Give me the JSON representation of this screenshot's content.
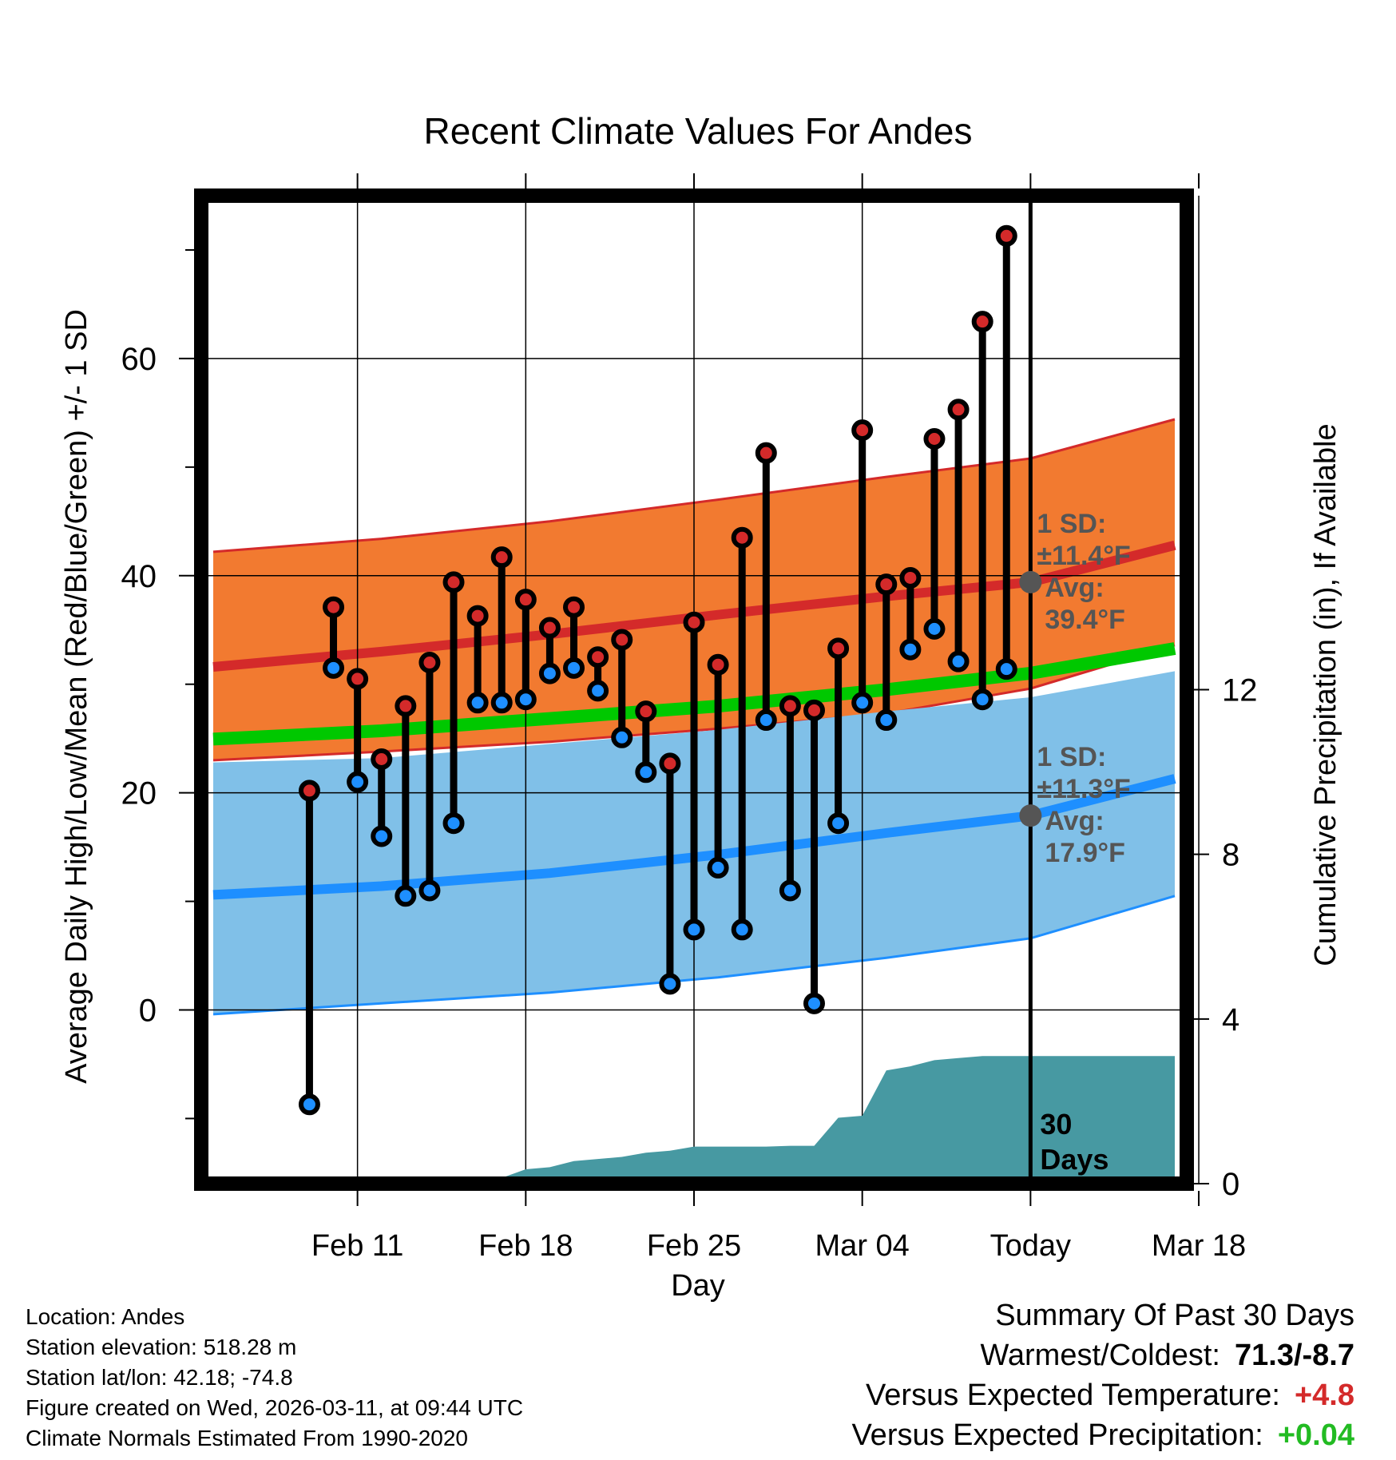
{
  "colors": {
    "high_band": "#f27a30",
    "high_line": "#d42a2a",
    "low_band": "#80c0e8",
    "low_line": "#1e8fff",
    "precip_normal": "#00c800",
    "precip_fill": "#4799a2",
    "annotation": "#555555",
    "warm": "#d42a2a",
    "wet": "#22bb22"
  },
  "chart_data": {
    "type": "line",
    "title": "Recent Climate Values For Andes",
    "xlabel": "Day",
    "ylabel": "Average Daily High/Low/Mean (Red/Blue/Green) +/- 1 SD",
    "y2label": "Cumulative Precipitation (in), If Available",
    "ylim": [
      -16,
      75
    ],
    "y2lim": [
      0,
      24
    ],
    "xlim": [
      -34.5,
      6.5
    ],
    "x_unit": "days relative to today (Mar 11)",
    "x_ticks": [
      {
        "x": -28,
        "label": "Feb 11"
      },
      {
        "x": -21,
        "label": "Feb 18"
      },
      {
        "x": -14,
        "label": "Feb 25"
      },
      {
        "x": -7,
        "label": "Mar 04"
      },
      {
        "x": 0,
        "label": "Today"
      },
      {
        "x": 7,
        "label": "Mar 18"
      }
    ],
    "y_ticks": [
      0,
      20,
      40,
      60
    ],
    "y_minor_ticks": [
      -10,
      10,
      30,
      50,
      70
    ],
    "y2_ticks": [
      0,
      4,
      8,
      12
    ],
    "today_line": {
      "x": 0,
      "label_num": "30",
      "label_text": "Days"
    },
    "normals": {
      "x": [
        -34,
        -27,
        -20,
        -13,
        -6,
        0,
        6
      ],
      "high_mean": [
        31.6,
        33.0,
        34.6,
        36.4,
        38.1,
        39.4,
        42.8
      ],
      "high_upper": [
        42.2,
        43.4,
        45.0,
        47.0,
        49.1,
        50.8,
        54.4
      ],
      "high_lower": [
        23.0,
        23.8,
        24.7,
        25.9,
        27.3,
        29.6,
        33.6
      ],
      "low_mean": [
        10.6,
        11.4,
        12.6,
        14.3,
        16.3,
        17.9,
        21.3
      ],
      "low_upper": [
        22.8,
        23.2,
        24.5,
        25.8,
        27.5,
        28.8,
        31.2
      ],
      "low_lower": [
        -0.4,
        0.6,
        1.6,
        3.0,
        4.8,
        6.6,
        10.5
      ],
      "precip_normal_y2": [
        10.8,
        11.0,
        11.3,
        11.6,
        12.0,
        12.4,
        13.0
      ]
    },
    "annotations": [
      {
        "x": 0,
        "y": 39.4,
        "sd_label": "1 SD:",
        "sd_value": "±11.4°F",
        "avg_label": "Avg:",
        "avg_value": "39.4°F"
      },
      {
        "x": 0,
        "y": 17.9,
        "sd_label": "1 SD:",
        "sd_value": "±11.3°F",
        "avg_label": "Avg:",
        "avg_value": "17.9°F"
      }
    ],
    "series": [
      {
        "name": "Daily High",
        "values": [
          20.2,
          37.1,
          30.5,
          23.1,
          28.0,
          32.0,
          39.4,
          36.3,
          41.7,
          37.8,
          35.2,
          37.1,
          32.5,
          34.1,
          27.5,
          22.7,
          35.7,
          31.8,
          43.5,
          51.3,
          28.0,
          27.6,
          33.3,
          53.4,
          39.2,
          39.8,
          52.6,
          55.3,
          63.4,
          71.3
        ]
      },
      {
        "name": "Daily Low",
        "values": [
          -8.7,
          31.5,
          21.0,
          16.0,
          10.5,
          11.0,
          17.2,
          28.3,
          28.3,
          28.6,
          31.0,
          31.5,
          29.4,
          25.1,
          21.9,
          2.4,
          7.4,
          13.1,
          7.4,
          26.7,
          11.0,
          0.6,
          17.2,
          28.3,
          26.7,
          33.2,
          35.1,
          32.1,
          28.6,
          31.4
        ]
      }
    ],
    "precip_cumulative": {
      "x": [
        -30,
        -29,
        -28,
        -27,
        -26,
        -25,
        -24,
        -23,
        -22,
        -21,
        -20,
        -19,
        -18,
        -17,
        -16,
        -15,
        -14,
        -13,
        -12,
        -11,
        -10,
        -9,
        -8,
        -7,
        -6,
        -5,
        -4,
        -3,
        -2,
        -1,
        0,
        6
      ],
      "y2": [
        0.0,
        0.05,
        0.1,
        0.12,
        0.12,
        0.14,
        0.14,
        0.14,
        0.14,
        0.35,
        0.4,
        0.55,
        0.6,
        0.65,
        0.75,
        0.8,
        0.9,
        0.9,
        0.9,
        0.9,
        0.92,
        0.92,
        1.6,
        1.65,
        2.75,
        2.85,
        3.0,
        3.05,
        3.1,
        3.1,
        3.1,
        3.1
      ]
    }
  },
  "footer": {
    "location": "Location: Andes",
    "elevation": "Station elevation: 518.28 m",
    "latlon": "Station lat/lon: 42.18; -74.8",
    "created": "Figure created on Wed, 2026-03-11, at 09:44 UTC",
    "normals": "Climate Normals Estimated From 1990-2020"
  },
  "summary": {
    "title": "Summary Of Past 30 Days",
    "warmest_label": "Warmest/Coldest:",
    "warmest_value": "71.3/-8.7",
    "temp_label": "Versus Expected Temperature:",
    "temp_value": "+4.8",
    "precip_label": "Versus Expected Precipitation:",
    "precip_value": "+0.04"
  }
}
